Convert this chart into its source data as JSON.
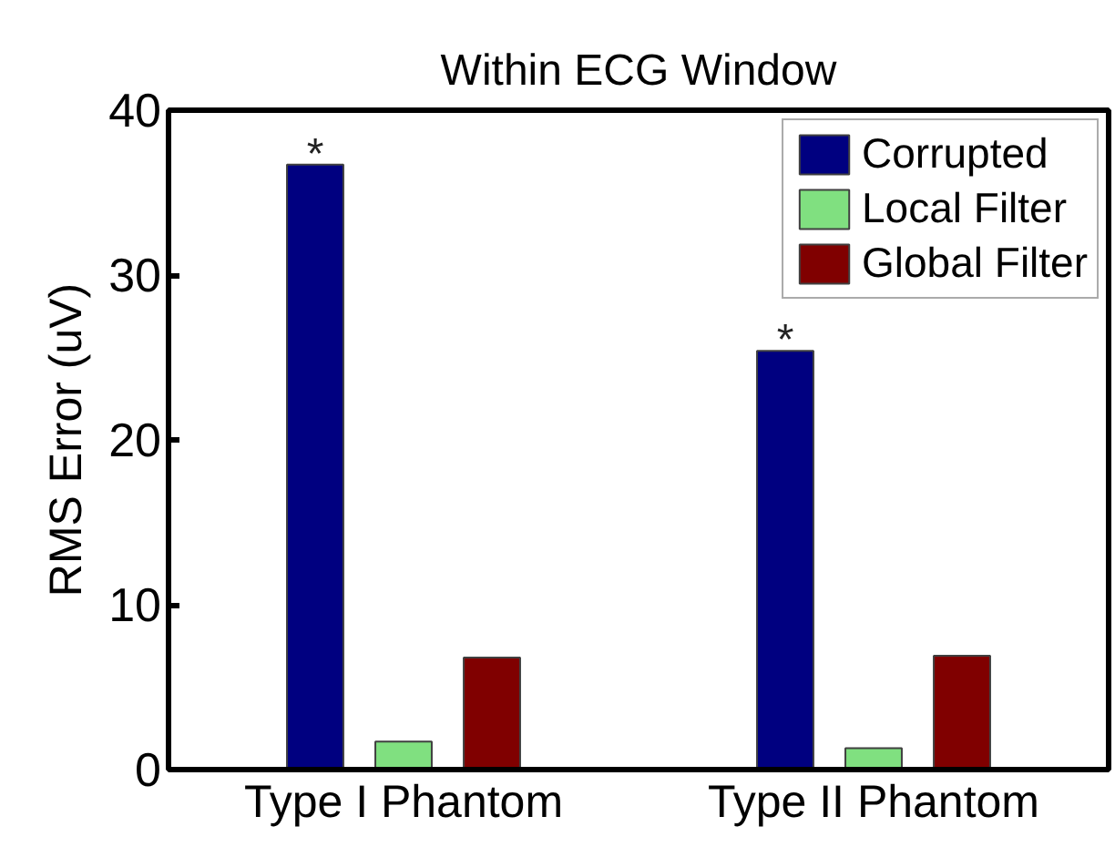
{
  "chart_data": {
    "type": "bar",
    "title": "Within ECG Window",
    "ylabel": "RMS Error (uV)",
    "categories": [
      "Type I Phantom",
      "Type II Phantom"
    ],
    "series": [
      {
        "name": "Corrupted",
        "color": "#000080",
        "values": [
          36.7,
          25.4
        ]
      },
      {
        "name": "Local Filter",
        "color": "#80e080",
        "values": [
          1.7,
          1.3
        ]
      },
      {
        "name": "Global Filter",
        "color": "#800000",
        "values": [
          6.8,
          6.9
        ]
      }
    ],
    "ylim": [
      0,
      40
    ],
    "yticks": [
      0,
      10,
      20,
      30,
      40
    ],
    "legend": "top right",
    "grid": false,
    "annotations": [
      "*",
      "*"
    ]
  }
}
